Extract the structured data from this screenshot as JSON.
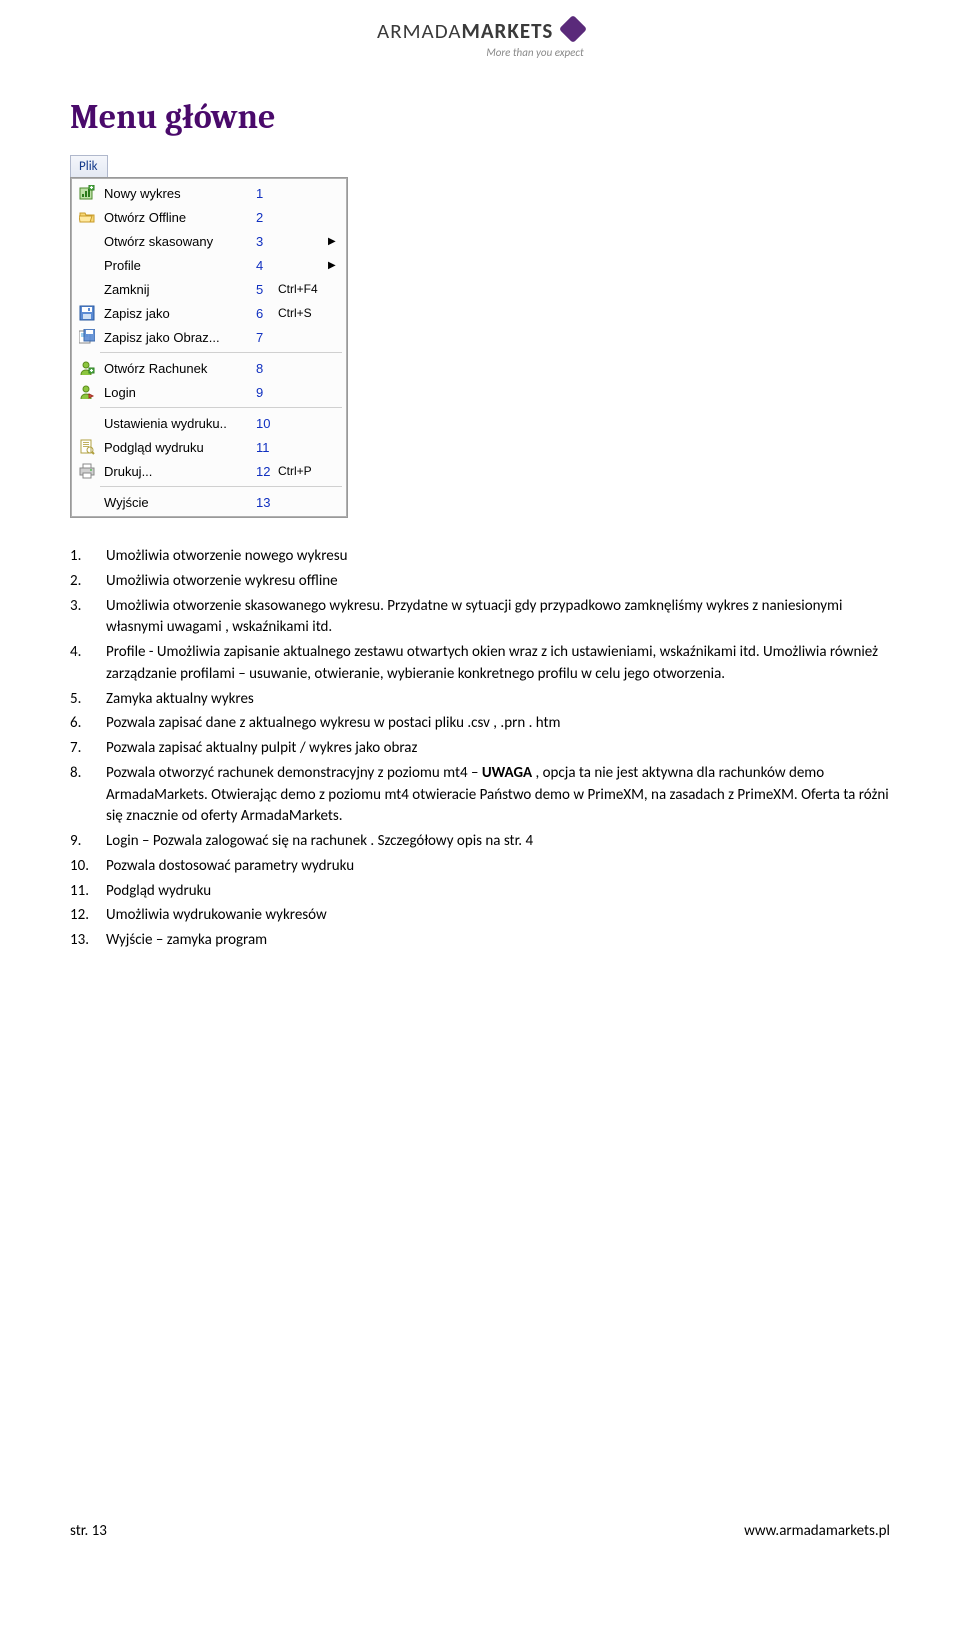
{
  "logo": {
    "brand_light": "ARMADA",
    "brand_bold": "MARKETS",
    "tagline": "More than you expect"
  },
  "section_title": "Menu główne",
  "menu_tab": "Plik",
  "menu": [
    {
      "icon": "new-chart",
      "label": "Nowy wykres",
      "num": "1",
      "shortcut": "",
      "arrow": false,
      "sep_after": false
    },
    {
      "icon": "folder",
      "label": "Otwórz Offline",
      "num": "2",
      "shortcut": "",
      "arrow": false,
      "sep_after": false
    },
    {
      "icon": "",
      "label": "Otwórz skasowany",
      "num": "3",
      "shortcut": "",
      "arrow": true,
      "sep_after": false
    },
    {
      "icon": "",
      "label": "Profile",
      "num": "4",
      "shortcut": "",
      "arrow": true,
      "sep_after": false
    },
    {
      "icon": "",
      "label": "Zamknij",
      "num": "5",
      "shortcut": "Ctrl+F4",
      "arrow": false,
      "sep_after": false
    },
    {
      "icon": "save",
      "label": "Zapisz jako",
      "num": "6",
      "shortcut": "Ctrl+S",
      "arrow": false,
      "sep_after": false
    },
    {
      "icon": "save-img",
      "label": "Zapisz jako Obraz...",
      "num": "7",
      "shortcut": "",
      "arrow": false,
      "sep_after": true
    },
    {
      "icon": "account",
      "label": "Otwórz Rachunek",
      "num": "8",
      "shortcut": "",
      "arrow": false,
      "sep_after": false
    },
    {
      "icon": "login",
      "label": "Login",
      "num": "9",
      "shortcut": "",
      "arrow": false,
      "sep_after": true
    },
    {
      "icon": "",
      "label": "Ustawienia wydruku..",
      "num": "10",
      "shortcut": "",
      "arrow": false,
      "sep_after": false
    },
    {
      "icon": "preview",
      "label": "Podgląd wydruku",
      "num": "11",
      "shortcut": "",
      "arrow": false,
      "sep_after": false
    },
    {
      "icon": "print",
      "label": "Drukuj...",
      "num": "12",
      "shortcut": "Ctrl+P",
      "arrow": false,
      "sep_after": true
    },
    {
      "icon": "",
      "label": "Wyjście",
      "num": "13",
      "shortcut": "",
      "arrow": false,
      "sep_after": false
    }
  ],
  "descriptions": [
    {
      "n": "1.",
      "text": "Umożliwia otworzenie nowego wykresu"
    },
    {
      "n": "2.",
      "text": "Umożliwia otworzenie wykresu offline"
    },
    {
      "n": "3.",
      "text": "Umożliwia otworzenie skasowanego wykresu. Przydatne w sytuacji gdy przypadkowo zamknęliśmy wykres z naniesionymi własnymi uwagami , wskaźnikami itd."
    },
    {
      "n": "4.",
      "text": "Profile - Umożliwia zapisanie aktualnego zestawu otwartych okien wraz z ich ustawieniami, wskaźnikami itd. Umożliwia również zarządzanie profilami – usuwanie, otwieranie, wybieranie konkretnego profilu w celu jego otworzenia."
    },
    {
      "n": "5.",
      "text": "Zamyka aktualny wykres"
    },
    {
      "n": "6.",
      "text": "Pozwala zapisać dane z aktualnego wykresu w postaci pliku .csv , .prn . htm"
    },
    {
      "n": "7.",
      "text": "Pozwala zapisać aktualny pulpit / wykres jako obraz"
    },
    {
      "n": "8.",
      "html": "Pozwala otworzyć rachunek demonstracyjny z poziomu mt4 – <b>UWAGA</b> , opcja ta nie jest aktywna dla rachunków demo ArmadaMarkets. Otwierając demo z poziomu mt4 otwieracie Państwo demo w PrimeXM, na zasadach z PrimeXM. Oferta ta różni się znacznie od oferty ArmadaMarkets."
    },
    {
      "n": "9.",
      "text": "Login – Pozwala zalogować się na rachunek . Szczegółowy opis na str. 4"
    },
    {
      "n": "10.",
      "text": "Pozwala dostosować parametry wydruku"
    },
    {
      "n": "11.",
      "text": "Podgląd wydruku"
    },
    {
      "n": "12.",
      "text": "Umożliwia wydrukowanie wykresów"
    },
    {
      "n": "13.",
      "text": "Wyjście – zamyka program"
    }
  ],
  "footer": {
    "left": "str. 13",
    "right": "www.armadamarkets.pl"
  },
  "colors": {
    "heading": "#4a0a6b",
    "menu_num": "#1030c0",
    "logo_diamond": "#5a2a7a"
  }
}
